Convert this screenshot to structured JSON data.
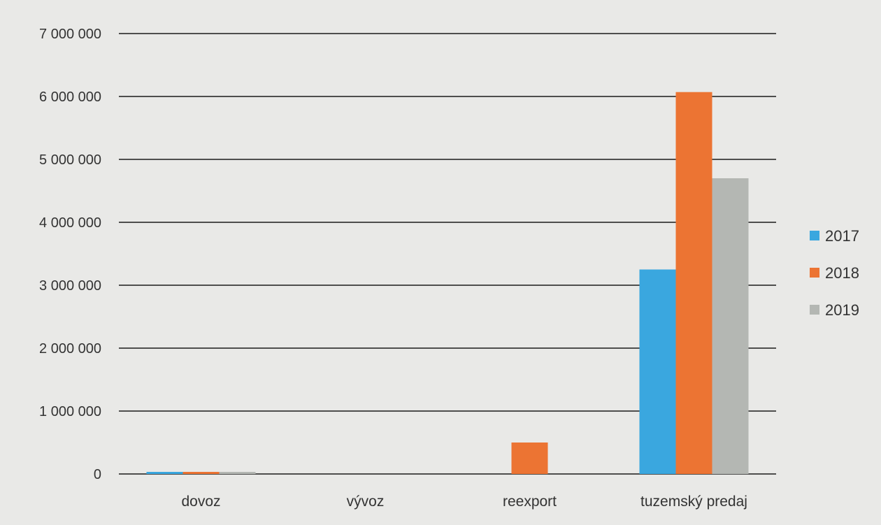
{
  "chart_data": {
    "type": "bar",
    "categories": [
      "dovoz",
      "vývoz",
      "reexport",
      "tuzemský predaj"
    ],
    "series": [
      {
        "name": "2017",
        "color": "#3aa7df",
        "values": [
          20000,
          0,
          0,
          3250000
        ]
      },
      {
        "name": "2018",
        "color": "#ec7433",
        "values": [
          15000,
          0,
          500000,
          6070000
        ]
      },
      {
        "name": "2019",
        "color": "#b4b7b3",
        "values": [
          15000,
          0,
          0,
          4700000
        ]
      }
    ],
    "yticks": [
      0,
      1000000,
      2000000,
      3000000,
      4000000,
      5000000,
      6000000,
      7000000
    ],
    "ytick_labels": [
      "0",
      "1 000 000",
      "2 000 000",
      "3 000 000",
      "4 000 000",
      "5 000 000",
      "6 000 000",
      "7 000 000"
    ],
    "ylim": [
      0,
      7000000
    ],
    "grid": true,
    "legend_position": "right",
    "title": "",
    "xlabel": "",
    "ylabel": ""
  }
}
